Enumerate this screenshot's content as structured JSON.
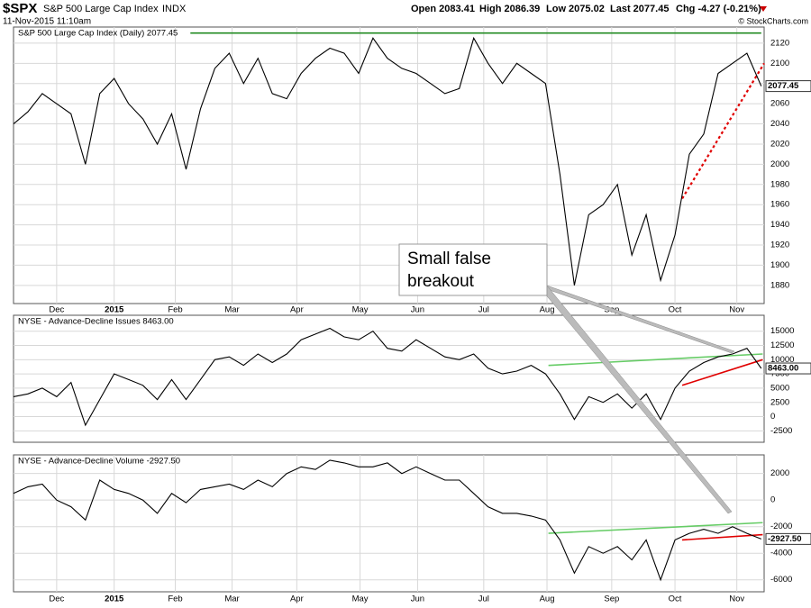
{
  "header": {
    "symbol": "$SPX",
    "name": "S&P 500 Large Cap Index",
    "exchange": "INDX",
    "date": "11-Nov-2015 11:10am",
    "quote": [
      "Open 2083.41",
      "High 2086.39",
      "Low 2075.02",
      "Last 2077.45",
      "Chg -4.27 (-0.21%)"
    ],
    "credit": "© StockCharts.com"
  },
  "annotation": {
    "text": [
      "Small false",
      "breakout"
    ],
    "color": "#0000cc"
  },
  "chart_data": [
    {
      "type": "line",
      "title": "S&P 500 Large Cap Index (Daily) 2077.45",
      "color": "#000000",
      "last_label": "2077.45",
      "values": [
        2040,
        2052,
        2070,
        2060,
        2050,
        2000,
        2070,
        2085,
        2060,
        2045,
        2020,
        2050,
        1995,
        2055,
        2095,
        2110,
        2080,
        2105,
        2070,
        2065,
        2090,
        2105,
        2115,
        2110,
        2090,
        2125,
        2105,
        2095,
        2090,
        2080,
        2070,
        2075,
        2125,
        2100,
        2080,
        2100,
        2090,
        2080,
        1990,
        1880,
        1950,
        1960,
        1980,
        1910,
        1950,
        1885,
        1930,
        2010,
        2030,
        2090,
        2100,
        2110,
        2077.45
      ],
      "xlim": [
        0,
        52.2
      ],
      "ylim": [
        1862,
        2136
      ],
      "yticks": [
        1880,
        1900,
        1920,
        1940,
        1960,
        1980,
        2000,
        2020,
        2040,
        2060,
        2080,
        2100,
        2120
      ],
      "xticks": [
        {
          "value": 3,
          "label": "Dec"
        },
        {
          "value": 7,
          "label": "2015"
        },
        {
          "value": 11.25,
          "label": "Feb"
        },
        {
          "value": 15.2,
          "label": "Mar"
        },
        {
          "value": 19.7,
          "label": "Apr"
        },
        {
          "value": 24.1,
          "label": "May"
        },
        {
          "value": 28.1,
          "label": "Jun"
        },
        {
          "value": 32.7,
          "label": "Jul"
        },
        {
          "value": 37.1,
          "label": "Aug"
        },
        {
          "value": 41.6,
          "label": "Sep"
        },
        {
          "value": 46,
          "label": "Oct"
        },
        {
          "value": 50.3,
          "label": "Nov"
        }
      ],
      "grid": true,
      "trendlines": [
        {
          "color": "#228b22",
          "dashed": false,
          "points": [
            [
              12.3,
              2130
            ],
            [
              52,
              2130
            ]
          ]
        },
        {
          "color": "#e00000",
          "dashed": true,
          "points": [
            [
              46.5,
              1966
            ],
            [
              52.2,
              2100
            ]
          ]
        }
      ]
    },
    {
      "type": "line",
      "title": "NYSE - Advance-Decline Issues 8463.00",
      "color": "#000000",
      "last_label": "8463.00",
      "values": [
        3500,
        4000,
        5000,
        3500,
        6000,
        -1500,
        3000,
        7500,
        6500,
        5500,
        3000,
        6500,
        3000,
        6500,
        10000,
        10500,
        9000,
        11000,
        9500,
        11000,
        13500,
        14500,
        15500,
        14000,
        13500,
        15000,
        12000,
        11500,
        13500,
        12000,
        10500,
        10000,
        11000,
        8500,
        7500,
        8000,
        9000,
        7500,
        4000,
        -500,
        3500,
        2500,
        4000,
        1500,
        4000,
        -500,
        5000,
        8000,
        9500,
        10500,
        11000,
        12000,
        8463
      ],
      "xlim": [
        0,
        52.2
      ],
      "ylim": [
        -4500,
        17800
      ],
      "yticks": [
        -2500,
        0,
        2500,
        5000,
        7500,
        10000,
        12500,
        15000
      ],
      "grid": true,
      "trendlines": [
        {
          "color": "#66cc66",
          "dashed": false,
          "points": [
            [
              37.2,
              9000
            ],
            [
              52.1,
              11000
            ]
          ]
        },
        {
          "color": "#e00000",
          "dashed": false,
          "points": [
            [
              46.5,
              5500
            ],
            [
              52.1,
              10000
            ]
          ]
        }
      ]
    },
    {
      "type": "line",
      "title": "NYSE - Advance-Decline Volume -2927.50",
      "color": "#000000",
      "last_label": "-2927.50",
      "values": [
        500,
        1000,
        1200,
        0,
        -500,
        -1500,
        1500,
        800,
        500,
        0,
        -1000,
        500,
        -200,
        800,
        1000,
        1200,
        800,
        1500,
        1000,
        2000,
        2500,
        2300,
        3000,
        2800,
        2500,
        2500,
        2800,
        2000,
        2500,
        2000,
        1500,
        1500,
        500,
        -500,
        -1000,
        -1000,
        -1200,
        -1500,
        -3000,
        -5500,
        -3500,
        -4000,
        -3500,
        -4500,
        -3000,
        -6000,
        -3000,
        -2500,
        -2200,
        -2500,
        -2000,
        -2500,
        -2927.5
      ],
      "xlim": [
        0,
        52.2
      ],
      "ylim": [
        -6900,
        3400
      ],
      "yticks": [
        -6000,
        -4000,
        -2000,
        0,
        2000
      ],
      "xticks": [
        {
          "value": 3,
          "label": "Dec"
        },
        {
          "value": 7,
          "label": "2015"
        },
        {
          "value": 11.25,
          "label": "Feb"
        },
        {
          "value": 15.2,
          "label": "Mar"
        },
        {
          "value": 19.7,
          "label": "Apr"
        },
        {
          "value": 24.1,
          "label": "May"
        },
        {
          "value": 28.1,
          "label": "Jun"
        },
        {
          "value": 32.7,
          "label": "Jul"
        },
        {
          "value": 37.1,
          "label": "Aug"
        },
        {
          "value": 41.6,
          "label": "Sep"
        },
        {
          "value": 46,
          "label": "Oct"
        },
        {
          "value": 50.3,
          "label": "Nov"
        }
      ],
      "grid": true,
      "trendlines": [
        {
          "color": "#66cc66",
          "dashed": false,
          "points": [
            [
              37.2,
              -2500
            ],
            [
              52.1,
              -1700
            ]
          ]
        },
        {
          "color": "#e00000",
          "dashed": false,
          "points": [
            [
              46.5,
              -3000
            ],
            [
              52.1,
              -2600
            ]
          ]
        }
      ]
    }
  ]
}
